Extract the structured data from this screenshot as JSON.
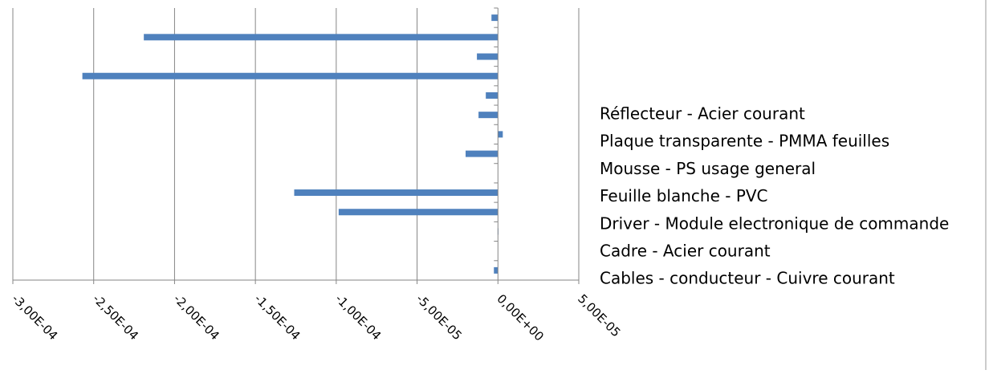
{
  "chart_data": {
    "type": "bar",
    "orientation": "horizontal",
    "xlim": [
      -0.0003,
      5e-05
    ],
    "x_ticks": [
      -0.0003,
      -0.00025,
      -0.0002,
      -0.00015,
      -0.0001,
      -5e-05,
      0,
      5e-05
    ],
    "x_tick_labels": [
      "-3,00E-04",
      "-2,50E-04",
      "-2,00E-04",
      "-1,50E-04",
      "-1,00E-04",
      "-5,00E-05",
      "0,00E+00",
      "5,00E-05"
    ],
    "grid": "vertical",
    "bar_color": "#4F81BD",
    "bars": [
      {
        "index": 1,
        "value": -2.5e-06
      },
      {
        "index": 2,
        "value": 1e-07
      },
      {
        "index": 3,
        "value": 3e-07
      },
      {
        "index": 4,
        "value": -9.85e-05
      },
      {
        "index": 5,
        "value": -0.000126
      },
      {
        "index": 6,
        "value": 1e-07
      },
      {
        "index": 7,
        "value": -2e-05
      },
      {
        "index": 8,
        "value": 3e-06
      },
      {
        "index": 9,
        "value": -1.2e-05
      },
      {
        "index": 10,
        "value": -7.5e-06
      },
      {
        "index": 11,
        "value": -0.000257
      },
      {
        "index": 12,
        "value": -1.3e-05
      },
      {
        "index": 13,
        "value": -0.000219
      },
      {
        "index": 14,
        "value": -4e-06
      }
    ],
    "category_labels": [
      "Réflecteur - Acier courant",
      "Plaque transparente - PMMA feuilles",
      "Mousse - PS usage general",
      "Feuille blanche - PVC",
      "Driver - Module electronique de commande",
      "Cadre - Acier courant",
      "Cables - conducteur - Cuivre courant"
    ]
  }
}
